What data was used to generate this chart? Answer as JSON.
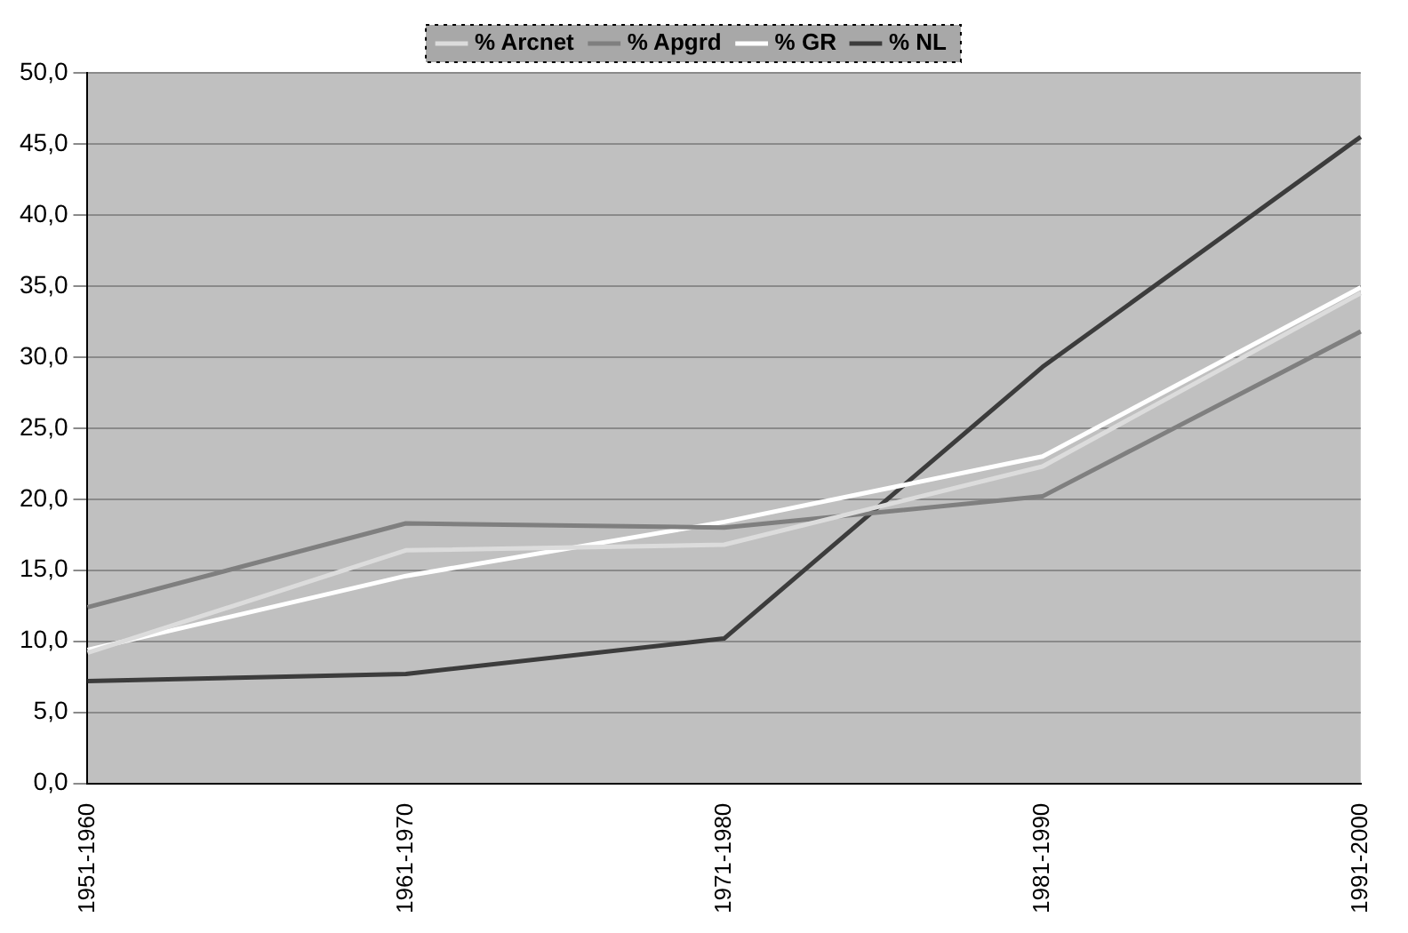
{
  "chart_data": {
    "type": "line",
    "categories": [
      "1951-1960",
      "1961-1970",
      "1971-1980",
      "1981-1990",
      "1991-2000"
    ],
    "series": [
      {
        "name": "% Arcnet",
        "color": "#dcdcdc",
        "values": [
          9.2,
          16.4,
          16.8,
          22.3,
          34.5
        ]
      },
      {
        "name": "% Apgrd",
        "color": "#7f7f7f",
        "values": [
          12.4,
          18.3,
          18.0,
          20.2,
          31.8
        ]
      },
      {
        "name": "% GR",
        "color": "#ffffff",
        "values": [
          9.4,
          14.6,
          18.4,
          23.0,
          34.9
        ]
      },
      {
        "name": "% NL",
        "color": "#3c3c3c",
        "values": [
          7.2,
          7.7,
          10.2,
          29.3,
          45.5
        ]
      }
    ],
    "ylim": [
      0,
      50
    ],
    "yticks": [
      {
        "value": 0,
        "label": "0,0"
      },
      {
        "value": 5,
        "label": "5,0"
      },
      {
        "value": 10,
        "label": "10,0"
      },
      {
        "value": 15,
        "label": "15,0"
      },
      {
        "value": 20,
        "label": "20,0"
      },
      {
        "value": 25,
        "label": "25,0"
      },
      {
        "value": 30,
        "label": "30,0"
      },
      {
        "value": 35,
        "label": "35,0"
      },
      {
        "value": 40,
        "label": "40,0"
      },
      {
        "value": 45,
        "label": "45,0"
      },
      {
        "value": 50,
        "label": "50,0"
      }
    ],
    "grid": "y",
    "legend": "top",
    "marker": "none",
    "line_style": "solid"
  }
}
